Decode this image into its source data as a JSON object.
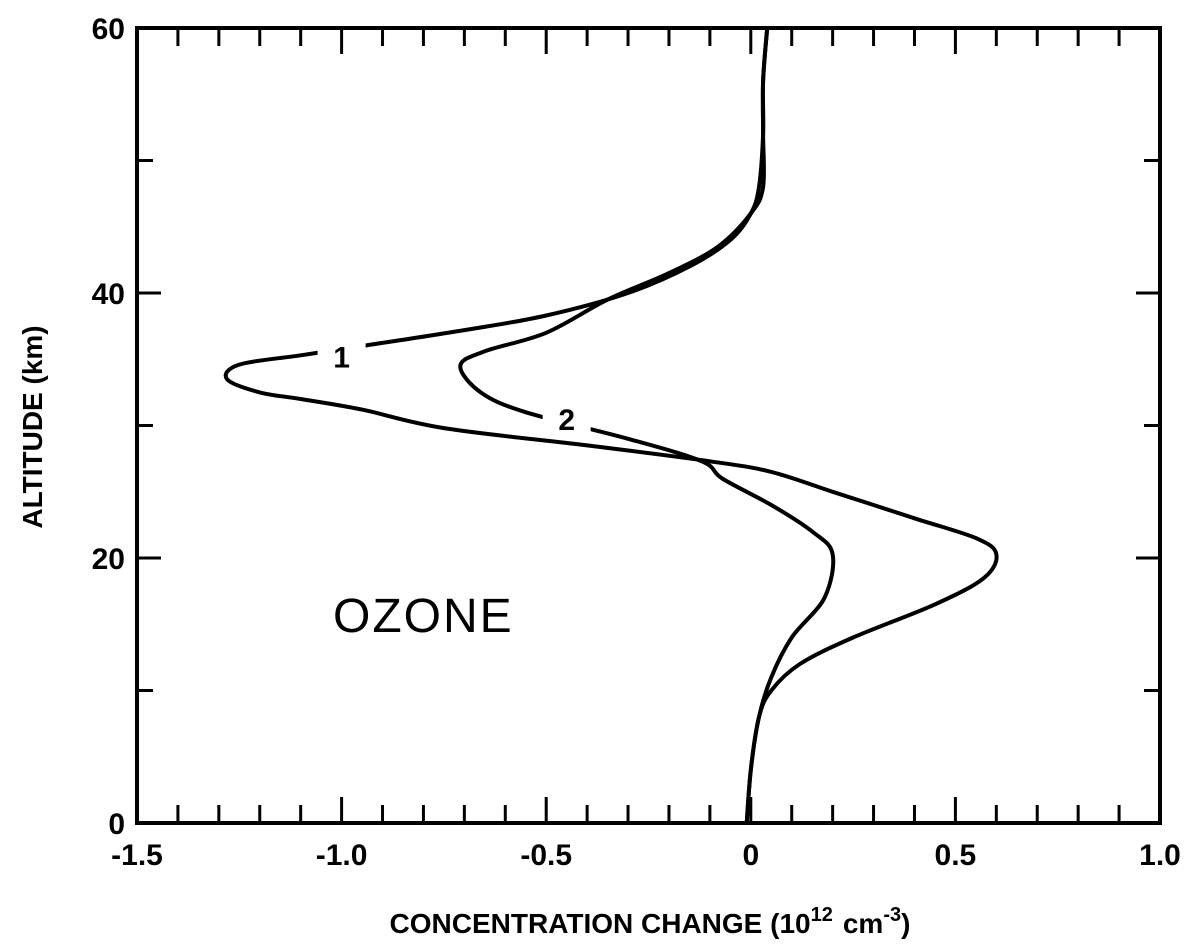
{
  "chart_data": {
    "type": "line",
    "title": "",
    "annotation": "OZONE",
    "xlabel": "CONCENTRATION CHANGE (10",
    "xlabel_exponent": "12",
    "xlabel_unit": "cm",
    "xlabel_unit_exponent": "-3",
    "xlabel_close": ")",
    "ylabel": "ALTITUDE (km)",
    "xlim": [
      -1.5,
      1.0
    ],
    "ylim": [
      0,
      60
    ],
    "x_tick_labels": [
      "-1.5",
      "-1.0",
      "-0.5",
      "0",
      "0.5",
      "1.0"
    ],
    "x_tick_values": [
      -1.5,
      -1.0,
      -0.5,
      0,
      0.5,
      1.0
    ],
    "y_tick_labels": [
      "0",
      "20",
      "40",
      "60"
    ],
    "y_tick_values": [
      0,
      20,
      40,
      60
    ],
    "grid": false,
    "series": [
      {
        "name": "1",
        "label_at": [
          -1.0,
          35.2
        ],
        "points": [
          [
            -0.01,
            0
          ],
          [
            0.0,
            4
          ],
          [
            0.02,
            8
          ],
          [
            0.05,
            10
          ],
          [
            0.12,
            12
          ],
          [
            0.25,
            14
          ],
          [
            0.45,
            16.5
          ],
          [
            0.57,
            18.5
          ],
          [
            0.6,
            20.3
          ],
          [
            0.55,
            21.5
          ],
          [
            0.4,
            23
          ],
          [
            0.2,
            25
          ],
          [
            0.05,
            26.5
          ],
          [
            -0.1,
            27.3
          ],
          [
            -0.4,
            28.5
          ],
          [
            -0.75,
            29.8
          ],
          [
            -0.95,
            31.2
          ],
          [
            -1.1,
            32
          ],
          [
            -1.2,
            32.5
          ],
          [
            -1.28,
            33.5
          ],
          [
            -1.25,
            34.6
          ],
          [
            -1.1,
            35.3
          ],
          [
            -0.95,
            36
          ],
          [
            -0.7,
            37.2
          ],
          [
            -0.5,
            38.3
          ],
          [
            -0.3,
            40
          ],
          [
            -0.15,
            42
          ],
          [
            -0.05,
            44
          ],
          [
            0.0,
            46
          ],
          [
            0.02,
            48
          ],
          [
            0.03,
            52
          ],
          [
            0.03,
            56
          ],
          [
            0.04,
            60
          ]
        ]
      },
      {
        "name": "2",
        "label_at": [
          -0.45,
          30.5
        ],
        "points": [
          [
            -0.01,
            0
          ],
          [
            0.0,
            4
          ],
          [
            0.02,
            8
          ],
          [
            0.05,
            11
          ],
          [
            0.1,
            14
          ],
          [
            0.18,
            17
          ],
          [
            0.2,
            20.3
          ],
          [
            0.15,
            22
          ],
          [
            0.05,
            24
          ],
          [
            -0.07,
            26
          ],
          [
            -0.12,
            27.3
          ],
          [
            -0.3,
            29
          ],
          [
            -0.55,
            31
          ],
          [
            -0.66,
            32.5
          ],
          [
            -0.71,
            34.5
          ],
          [
            -0.65,
            35.6
          ],
          [
            -0.5,
            37
          ],
          [
            -0.35,
            39.5
          ],
          [
            -0.2,
            41.5
          ],
          [
            -0.08,
            43.5
          ],
          [
            0.0,
            46
          ],
          [
            0.03,
            48
          ],
          [
            0.03,
            52
          ],
          [
            0.03,
            56
          ],
          [
            0.04,
            60
          ]
        ]
      }
    ]
  }
}
